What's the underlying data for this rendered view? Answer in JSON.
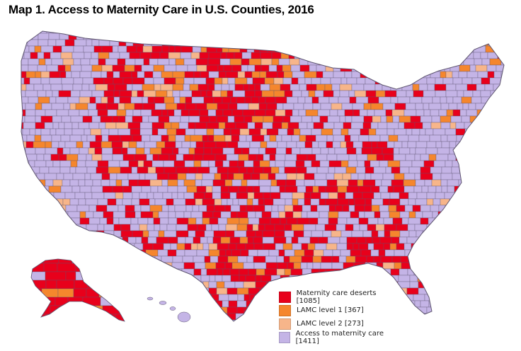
{
  "title": "Map 1. Access to Maternity Care in U.S. Counties, 2016",
  "legend": [
    {
      "label": "Maternity care deserts [1085]",
      "color": "#e8001b"
    },
    {
      "label": "LAMC level 1 [367]",
      "color": "#f5862d"
    },
    {
      "label": "LAMC level 2 [273]",
      "color": "#f7b58a"
    },
    {
      "label": "Access to maternity care [1411]",
      "color": "#c4b4e6"
    }
  ],
  "colors": {
    "background": "#ffffff",
    "border": "#5e5570"
  }
}
